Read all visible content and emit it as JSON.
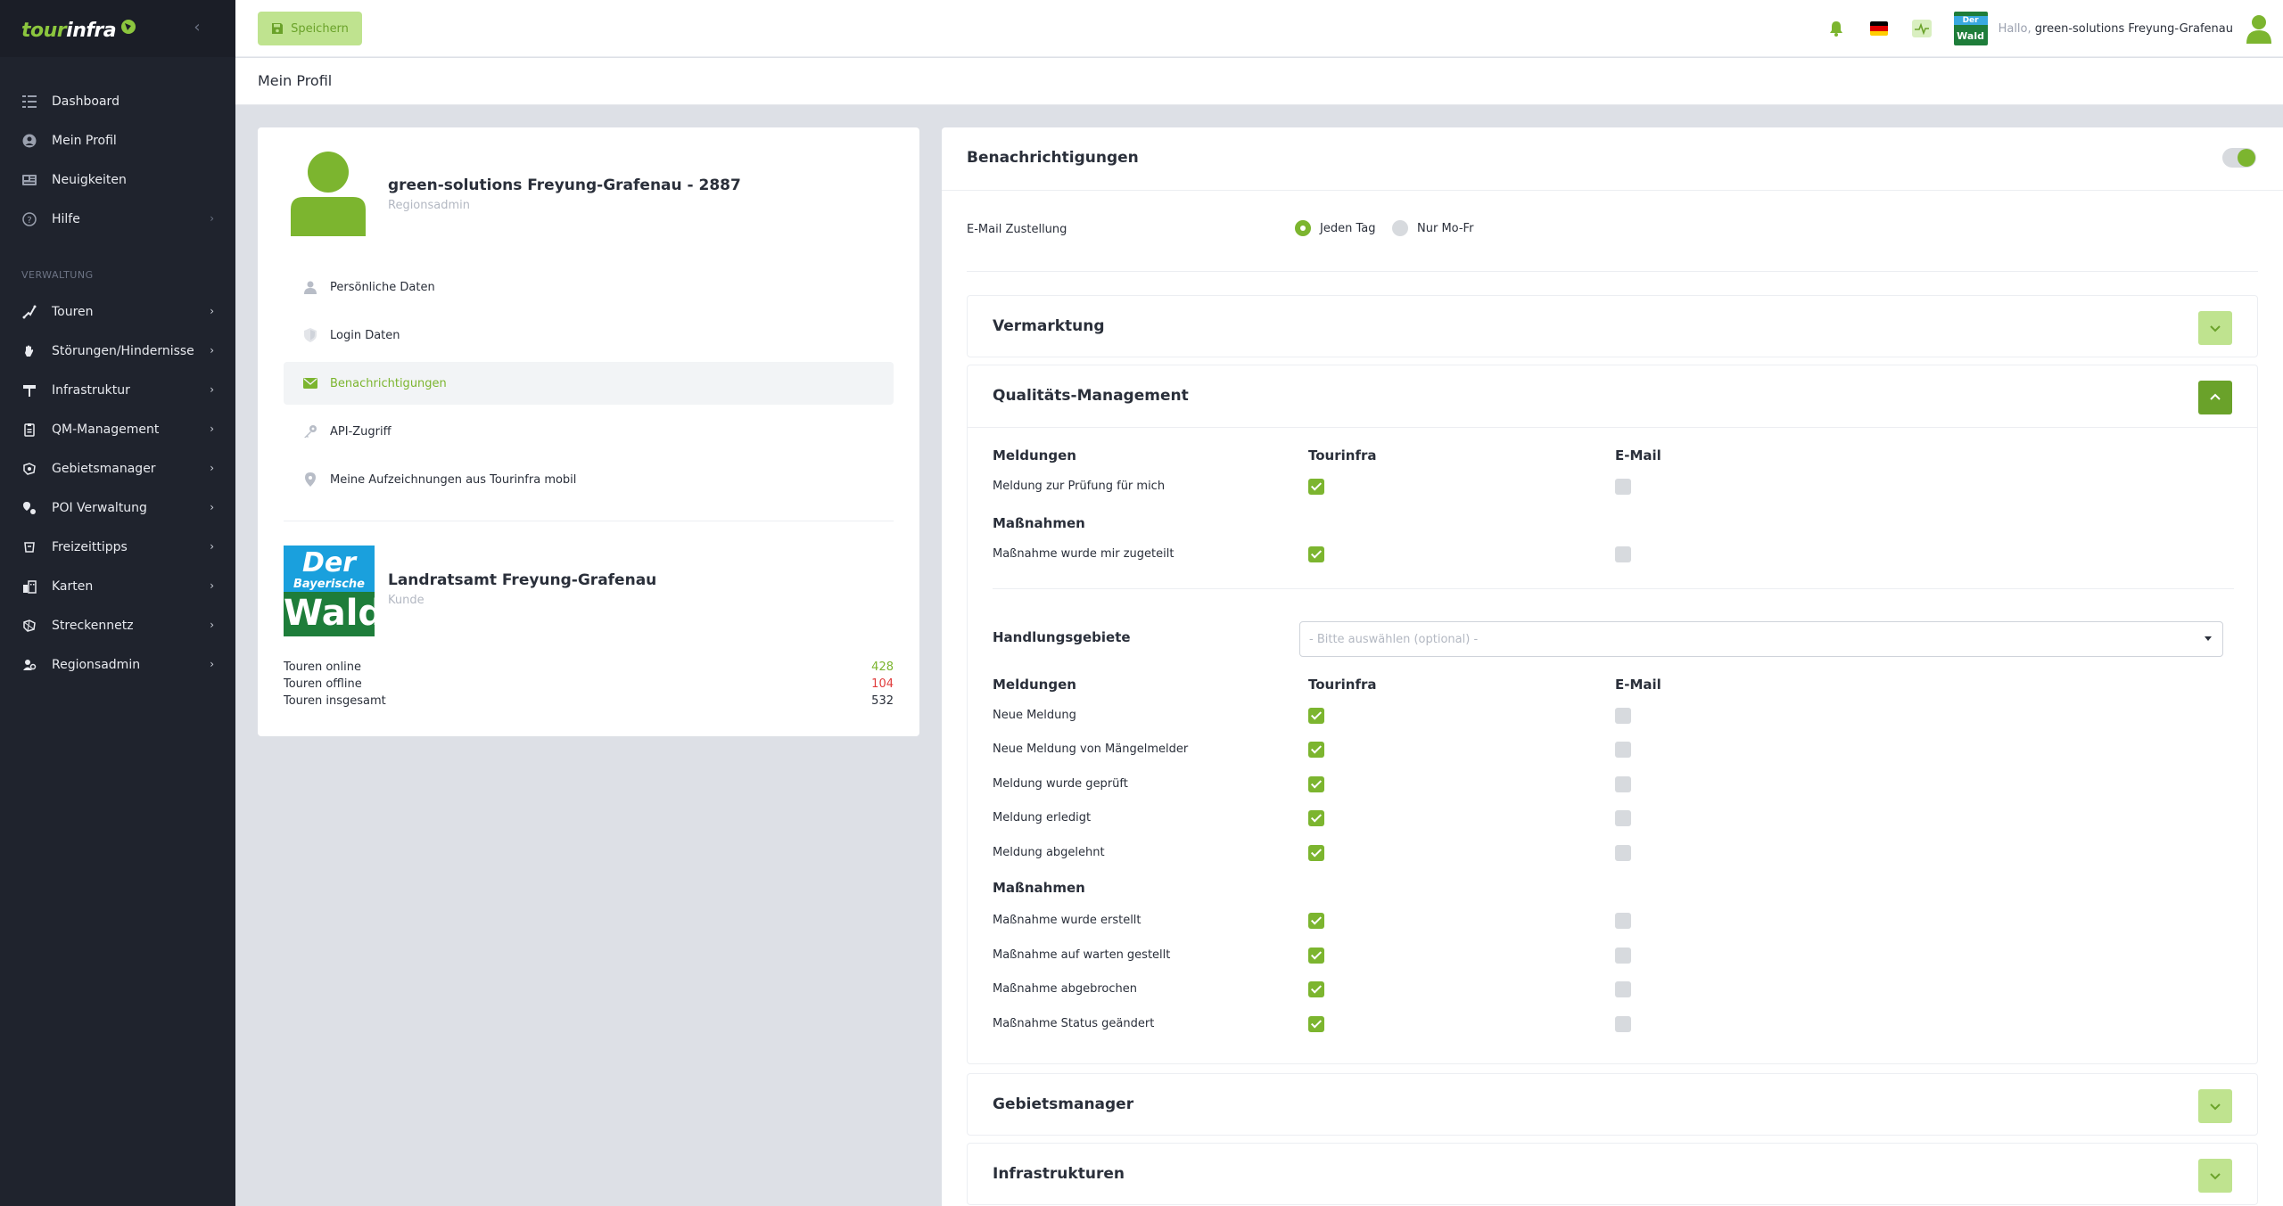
{
  "brand": {
    "part1": "tour",
    "part2": "infra"
  },
  "sidebar": {
    "items_top": [
      {
        "label": "Dashboard",
        "icon": "dashboard-icon"
      },
      {
        "label": "Mein Profil",
        "icon": "user-circle-icon"
      },
      {
        "label": "Neuigkeiten",
        "icon": "news-icon"
      },
      {
        "label": "Hilfe",
        "icon": "help-icon"
      }
    ],
    "section_label": "VERWALTUNG",
    "items_admin": [
      {
        "label": "Touren",
        "icon": "route-icon"
      },
      {
        "label": "Störungen/Hindernisse",
        "icon": "hand-stop-icon"
      },
      {
        "label": "Infrastruktur",
        "icon": "signpost-icon"
      },
      {
        "label": "QM-Management",
        "icon": "clipboard-icon"
      },
      {
        "label": "Gebietsmanager",
        "icon": "area-icon"
      },
      {
        "label": "POI Verwaltung",
        "icon": "poi-icon"
      },
      {
        "label": "Freizeittipps",
        "icon": "leisure-icon"
      },
      {
        "label": "Karten",
        "icon": "map-icon"
      },
      {
        "label": "Streckennetz",
        "icon": "network-icon"
      },
      {
        "label": "Regionsadmin",
        "icon": "region-admin-icon"
      }
    ]
  },
  "topbar": {
    "save_label": "Speichern",
    "region_logo_top": "Der",
    "region_logo_bottom": "Wald",
    "hello_prefix": "Hallo,",
    "hello_name": "green-solutions Freyung-Grafenau"
  },
  "page": {
    "title": "Mein Profil"
  },
  "profile": {
    "name": "green-solutions Freyung-Grafenau - 2887",
    "role": "Regionsadmin",
    "menu": [
      {
        "label": "Persönliche Daten",
        "icon": "person-icon"
      },
      {
        "label": "Login Daten",
        "icon": "shield-icon"
      },
      {
        "label": "Benachrichtigungen",
        "icon": "envelope-icon"
      },
      {
        "label": "API-Zugriff",
        "icon": "key-icon"
      },
      {
        "label": "Meine Aufzeichnungen aus Tourinfra mobil",
        "icon": "location-pin-icon"
      }
    ],
    "org": {
      "logo_line1": "Der",
      "logo_line2": "Bayerische",
      "logo_line3": "Wald",
      "name": "Landratsamt Freyung-Grafenau",
      "type": "Kunde"
    },
    "stats": [
      {
        "label": "Touren online",
        "value": "428"
      },
      {
        "label": "Touren offline",
        "value": "104"
      },
      {
        "label": "Touren insgesamt",
        "value": "532"
      }
    ]
  },
  "notifications": {
    "title": "Benachrichtigungen",
    "enabled": true,
    "email_label": "E-Mail Zustellung",
    "radio_daily": "Jeden Tag",
    "radio_weekdays": "Nur Mo-Fr",
    "selected": "Jeden Tag",
    "sections": {
      "vermarktung": "Vermarktung",
      "qm": "Qualitäts-Management",
      "gebietsmanager": "Gebietsmanager",
      "infrastrukturen": "Infrastrukturen"
    },
    "qm": {
      "col_meldungen": "Meldungen",
      "col_tourinfra": "Tourinfra",
      "col_email": "E-Mail",
      "col_massnahmen": "Maßnahmen",
      "group1": {
        "meldungen": [
          "Meldung zur Prüfung für mich"
        ],
        "massnahmen": [
          "Maßnahme wurde mir zugeteilt"
        ]
      },
      "handlungsgebiete_label": "Handlungsgebiete",
      "handlungsgebiete_placeholder": "- Bitte auswählen (optional) -",
      "group2": {
        "meldungen": [
          "Neue Meldung",
          "Neue Meldung von Mängelmelder",
          "Meldung wurde geprüft",
          "Meldung erledigt",
          "Meldung abgelehnt"
        ],
        "massnahmen": [
          "Maßnahme wurde erstellt",
          "Maßnahme auf warten gestellt",
          "Maßnahme abgebrochen",
          "Maßnahme Status geändert"
        ]
      }
    }
  },
  "colors": {
    "accent": "#7cb52f",
    "sidebar_bg": "#1f232d",
    "danger": "#e03b3b"
  }
}
